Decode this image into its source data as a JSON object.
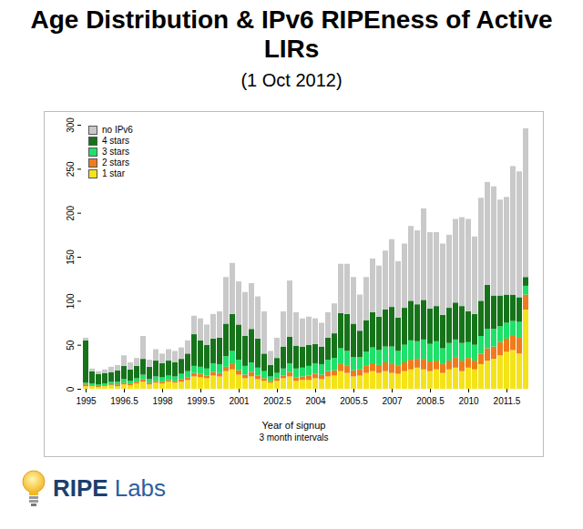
{
  "chart_data": {
    "type": "bar",
    "title": "Age Distribution & IPv6 RIPEness of Active LIRs",
    "subtitle": "(1 Oct 2012)",
    "x_label": "Year of signup",
    "x_sublabel": "3 month intervals",
    "caption": "RIPE Labs",
    "stacked": true,
    "legend": "top-left",
    "categories": [
      "1995",
      null,
      null,
      null,
      null,
      null,
      "1996.5",
      null,
      null,
      null,
      null,
      null,
      "1998",
      null,
      null,
      null,
      null,
      null,
      "1999.5",
      null,
      null,
      null,
      null,
      null,
      "2001",
      null,
      null,
      null,
      null,
      null,
      "2002.5",
      null,
      null,
      null,
      null,
      null,
      "2004",
      null,
      null,
      null,
      null,
      null,
      "2005.5",
      null,
      null,
      null,
      null,
      null,
      "2007",
      null,
      null,
      null,
      null,
      null,
      "2008.5",
      null,
      null,
      null,
      null,
      null,
      "2010",
      null,
      null,
      null,
      null,
      null,
      "2011.5",
      null,
      null,
      null
    ],
    "ylim": [
      0,
      300
    ],
    "yticks": [
      0,
      50,
      100,
      150,
      200,
      250,
      300
    ],
    "series": [
      {
        "name": "1 star",
        "color": "#f5e31a",
        "values": [
          3,
          3,
          2,
          3,
          4,
          3,
          5,
          4,
          6,
          8,
          5,
          7,
          6,
          8,
          7,
          8,
          10,
          14,
          13,
          12,
          15,
          14,
          20,
          22,
          16,
          12,
          14,
          11,
          9,
          7,
          9,
          12,
          14,
          9,
          10,
          10,
          12,
          11,
          14,
          15,
          20,
          18,
          14,
          15,
          18,
          20,
          18,
          20,
          18,
          17,
          20,
          22,
          24,
          22,
          20,
          22,
          18,
          22,
          24,
          20,
          24,
          22,
          28,
          32,
          34,
          38,
          42,
          44,
          40,
          90
        ]
      },
      {
        "name": "2 stars",
        "color": "#f07b1c",
        "values": [
          2,
          1,
          1,
          1,
          1,
          2,
          2,
          2,
          2,
          3,
          2,
          2,
          2,
          2,
          2,
          3,
          3,
          4,
          4,
          3,
          4,
          4,
          5,
          6,
          5,
          4,
          5,
          4,
          3,
          2,
          3,
          3,
          5,
          4,
          4,
          5,
          5,
          5,
          6,
          6,
          8,
          8,
          7,
          7,
          8,
          9,
          9,
          10,
          10,
          9,
          10,
          11,
          10,
          12,
          11,
          10,
          10,
          10,
          12,
          12,
          11,
          10,
          12,
          14,
          14,
          15,
          15,
          16,
          18,
          17
        ]
      },
      {
        "name": "3 stars",
        "color": "#1fe06a",
        "values": [
          2,
          2,
          2,
          2,
          3,
          3,
          4,
          3,
          4,
          5,
          4,
          5,
          5,
          5,
          5,
          6,
          7,
          8,
          8,
          8,
          10,
          10,
          12,
          15,
          12,
          10,
          11,
          9,
          8,
          5,
          6,
          8,
          10,
          10,
          10,
          11,
          12,
          12,
          13,
          14,
          18,
          17,
          15,
          14,
          16,
          18,
          17,
          18,
          20,
          17,
          20,
          22,
          20,
          22,
          20,
          22,
          18,
          20,
          20,
          20,
          18,
          18,
          20,
          22,
          20,
          18,
          18,
          17,
          18,
          10
        ]
      },
      {
        "name": "4 stars",
        "color": "#16731a",
        "values": [
          48,
          14,
          12,
          12,
          11,
          13,
          15,
          13,
          14,
          18,
          14,
          18,
          16,
          17,
          16,
          17,
          20,
          36,
          30,
          27,
          28,
          30,
          37,
          42,
          40,
          34,
          38,
          33,
          20,
          13,
          17,
          25,
          30,
          26,
          24,
          24,
          22,
          20,
          25,
          28,
          40,
          42,
          38,
          30,
          36,
          40,
          38,
          42,
          45,
          38,
          42,
          45,
          42,
          45,
          40,
          40,
          38,
          40,
          42,
          42,
          35,
          35,
          40,
          50,
          38,
          35,
          32,
          30,
          28,
          10
        ]
      },
      {
        "name": "no IPv6",
        "color": "#c9c9c9",
        "values": [
          3,
          3,
          3,
          4,
          6,
          6,
          12,
          8,
          9,
          26,
          8,
          13,
          11,
          13,
          13,
          13,
          15,
          21,
          25,
          23,
          28,
          30,
          53,
          58,
          49,
          50,
          52,
          48,
          48,
          16,
          23,
          40,
          64,
          38,
          32,
          32,
          29,
          27,
          29,
          34,
          56,
          57,
          53,
          41,
          49,
          61,
          58,
          67,
          77,
          64,
          73,
          85,
          84,
          104,
          87,
          84,
          81,
          83,
          95,
          101,
          105,
          88,
          117,
          117,
          124,
          109,
          111,
          146,
          143,
          169
        ]
      }
    ]
  }
}
